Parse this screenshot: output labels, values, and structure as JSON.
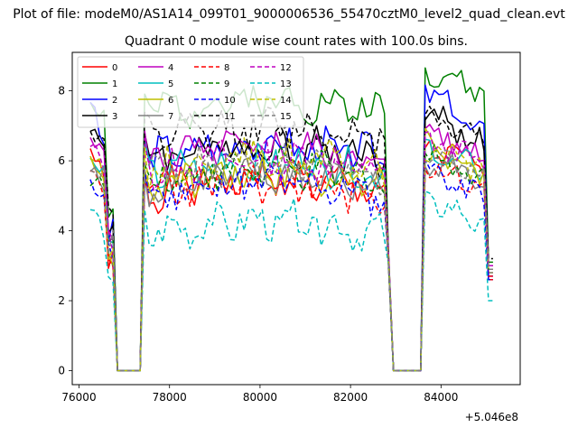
{
  "chart_data": {
    "type": "line",
    "suptitle": "Plot of file: modeM0/AS1A14_099T01_9000006536_55470cztM0_level2_quad_clean.evt",
    "title": "Quadrant 0 module wise count rates with 100.0s bins.",
    "xlabel": "",
    "ylabel": "",
    "x_offset_label": "+5.046e8",
    "xlim": [
      75850,
      85750
    ],
    "ylim": [
      -0.4,
      9.1
    ],
    "xticks": [
      76000,
      78000,
      80000,
      82000,
      84000
    ],
    "xtick_labels": [
      "76000",
      "78000",
      "80000",
      "82000",
      "84000"
    ],
    "yticks": [
      0,
      2,
      4,
      6,
      8
    ],
    "ytick_labels": [
      "0",
      "2",
      "4",
      "6",
      "8"
    ],
    "x_start": 76250,
    "x_step": 100,
    "gaps": [
      [
        76850,
        77350
      ],
      [
        82950,
        83550
      ]
    ],
    "gap_exit_value": 2.9,
    "series": [
      {
        "name": "0",
        "color": "#ff0000",
        "style": "solid",
        "base": 5.1,
        "start": 6.2,
        "end": 2.6,
        "seg2": [
          6.4,
          5.8
        ],
        "seed": 1
      },
      {
        "name": "1",
        "color": "#008000",
        "style": "solid",
        "base": 7.4,
        "start": 7.6,
        "end": 3.1,
        "seg2": [
          8.7,
          7.9
        ],
        "seed": 2
      },
      {
        "name": "2",
        "color": "#0000ff",
        "style": "solid",
        "base": 6.1,
        "start": 7.8,
        "end": 2.7,
        "seg2": [
          8.2,
          6.6
        ],
        "seed": 3
      },
      {
        "name": "3",
        "color": "#000000",
        "style": "solid",
        "base": 6.1,
        "start": 7.2,
        "end": 3.0,
        "seg2": [
          7.6,
          6.3
        ],
        "seed": 4
      },
      {
        "name": "4",
        "color": "#bf00bf",
        "style": "solid",
        "base": 6.0,
        "start": 6.6,
        "end": 3.0,
        "seg2": [
          7.0,
          6.0
        ],
        "seed": 5
      },
      {
        "name": "5",
        "color": "#00bfbf",
        "style": "solid",
        "base": 5.6,
        "start": 6.0,
        "end": 2.9,
        "seg2": [
          6.4,
          5.6
        ],
        "seed": 6
      },
      {
        "name": "6",
        "color": "#bfbf00",
        "style": "solid",
        "base": 5.3,
        "start": 6.0,
        "end": 2.8,
        "seg2": [
          6.6,
          5.5
        ],
        "seed": 7
      },
      {
        "name": "7",
        "color": "#808080",
        "style": "solid",
        "base": 5.2,
        "start": 5.6,
        "end": 2.8,
        "seg2": [
          6.1,
          5.4
        ],
        "seed": 8
      },
      {
        "name": "8",
        "color": "#ff0000",
        "style": "dashed",
        "base": 5.0,
        "start": 5.8,
        "end": 2.7,
        "seg2": [
          6.0,
          5.2
        ],
        "seed": 9
      },
      {
        "name": "9",
        "color": "#008000",
        "style": "dashed",
        "base": 5.4,
        "start": 5.6,
        "end": 2.9,
        "seg2": [
          6.3,
          5.4
        ],
        "seed": 10
      },
      {
        "name": "10",
        "color": "#0000ff",
        "style": "dashed",
        "base": 5.0,
        "start": 5.4,
        "end": 2.6,
        "seg2": [
          5.8,
          4.9
        ],
        "seed": 11
      },
      {
        "name": "11",
        "color": "#000000",
        "style": "dashed",
        "base": 6.6,
        "start": 6.8,
        "end": 3.2,
        "seg2": [
          7.4,
          6.6
        ],
        "seed": 12
      },
      {
        "name": "12",
        "color": "#bf00bf",
        "style": "dashed",
        "base": 5.7,
        "start": 6.3,
        "end": 3.0,
        "seg2": [
          6.7,
          5.8
        ],
        "seed": 13
      },
      {
        "name": "13",
        "color": "#00bfbf",
        "style": "dashed",
        "base": 3.9,
        "start": 4.5,
        "end": 2.0,
        "seg2": [
          5.0,
          4.1
        ],
        "seed": 14
      },
      {
        "name": "14",
        "color": "#bfbf00",
        "style": "dashed",
        "base": 5.7,
        "start": 6.1,
        "end": 2.9,
        "seg2": [
          6.5,
          5.7
        ],
        "seed": 15
      },
      {
        "name": "15",
        "color": "#808080",
        "style": "dashed",
        "base": 5.6,
        "start": 6.0,
        "end": 2.9,
        "seg2": [
          6.3,
          5.6
        ],
        "seed": 16
      }
    ]
  }
}
